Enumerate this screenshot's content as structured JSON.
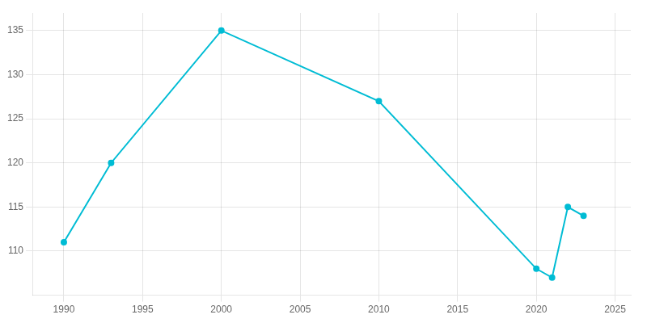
{
  "chart_data": {
    "type": "line",
    "x": [
      1990,
      1993,
      2000,
      2010,
      2020,
      2021,
      2022,
      2023
    ],
    "values": [
      111,
      120,
      135,
      127,
      108,
      107,
      115,
      114
    ],
    "color": "#00bcd4",
    "marker": "circle",
    "xlim": [
      1988,
      2026
    ],
    "ylim": [
      105,
      137
    ],
    "xticks": [
      1990,
      1995,
      2000,
      2005,
      2010,
      2015,
      2020,
      2025
    ],
    "yticks": [
      110,
      115,
      120,
      125,
      130,
      135
    ],
    "grid": true
  }
}
